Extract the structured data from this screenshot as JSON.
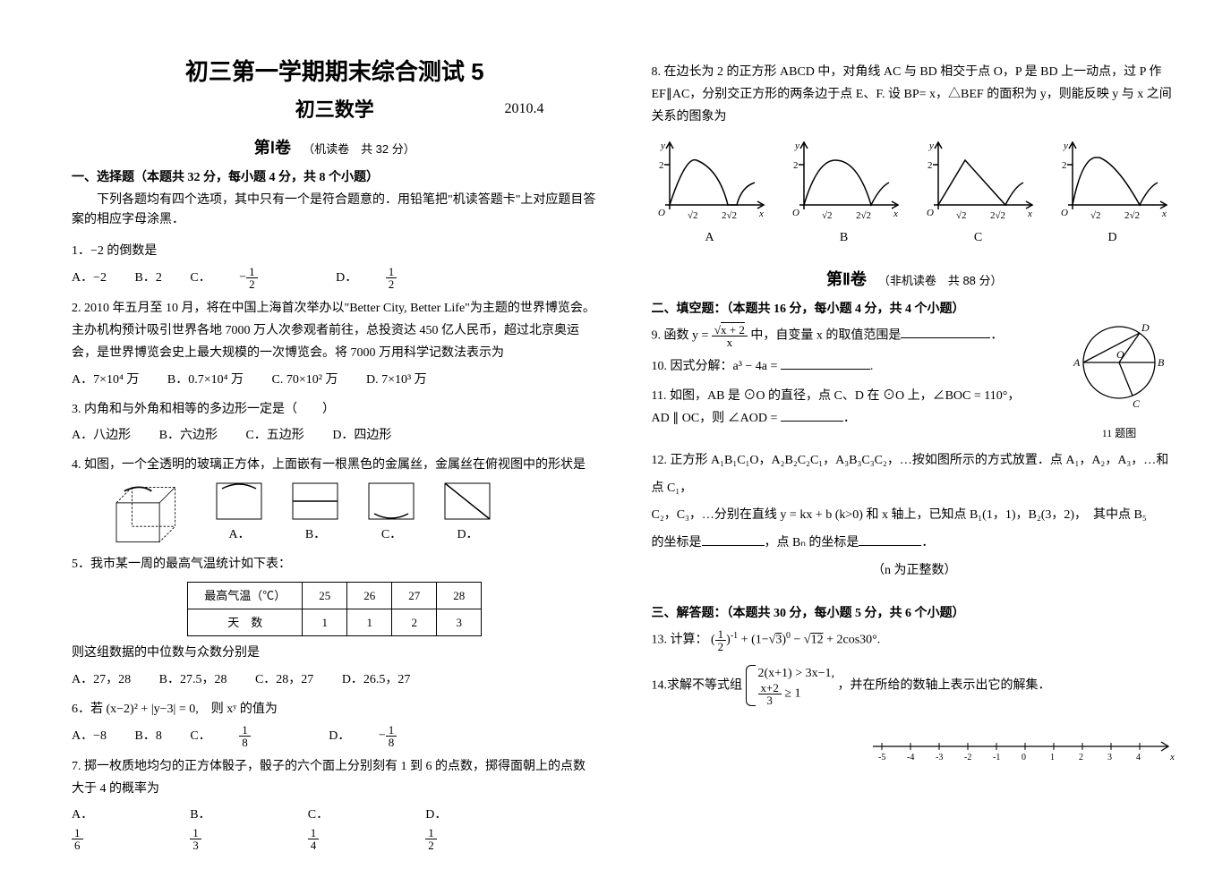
{
  "header": {
    "title_main": "初三第一学期期末综合测试 5",
    "title_sub": "初三数学",
    "date": "2010.4"
  },
  "part1": {
    "label": "第Ⅰ卷",
    "sub": "（机读卷　共 32 分）"
  },
  "section1": {
    "title": "一、选择题（本题共 32 分，每小题 4 分，共 8 个小题）",
    "instruction": "下列各题均有四个选项，其中只有一个是符合题意的．用铅笔把\"机读答题卡\"上对应题目答案的相应字母涂黑．"
  },
  "q1": {
    "text": "1．−2 的倒数是",
    "opts": {
      "A": "A．−2",
      "B": "B．2",
      "C": "C．",
      "D": "D．"
    }
  },
  "q2": {
    "text": "2. 2010 年五月至 10 月，将在中国上海首次举办以\"Better City, Better Life\"为主题的世界博览会。主办机构预计吸引世界各地 7000 万人次参观者前往，总投资达 450 亿人民币，超过北京奥运会，是世界博览会史上最大规模的一次博览会。将 7000 万用科学记数法表示为",
    "A": "A．7×10⁴ 万",
    "B": "B．0.7×10⁴ 万",
    "C": "C. 70×10² 万",
    "D": "D. 7×10³ 万"
  },
  "q3": {
    "text": "3. 内角和与外角和相等的多边形一定是（　　）",
    "A": "A．八边形",
    "B": "B．六边形",
    "C": "C．五边形",
    "D": "D．四边形"
  },
  "q4": {
    "text": "4. 如图，一个全透明的玻璃正方体，上面嵌有一根黑色的金属丝，金属丝在俯视图中的形状是",
    "opts": {
      "A": "A．",
      "B": "B．",
      "C": "C．",
      "D": "D．"
    }
  },
  "q5": {
    "text": "5．我市某一周的最高气温统计如下表：",
    "table": {
      "r1": [
        "最高气温（℃）",
        "25",
        "26",
        "27",
        "28"
      ],
      "r2": [
        "天　数",
        "1",
        "1",
        "2",
        "3"
      ]
    },
    "after": "则这组数据的中位数与众数分别是",
    "A": "A．27，28",
    "B": "B．27.5，28",
    "C": "C．28，27",
    "D": "D．26.5，27"
  },
  "q6": {
    "pre": "6．若 ",
    "post": "　则 xʸ 的值为",
    "A": "A．−8",
    "B": "B．8",
    "C": "C．",
    "D": "D．"
  },
  "q7": {
    "text": "7. 掷一枚质地均匀的正方体骰子，骰子的六个面上分别刻有 1 到 6 的点数，掷得面朝上的点数大于 4 的概率为",
    "opts": {
      "A": "A．",
      "B": "B．",
      "C": "C．",
      "D": "D．"
    }
  },
  "q8": {
    "text": "8. 在边长为 2 的正方形 ABCD 中，对角线 AC 与 BD 相交于点 O，P 是 BD 上一动点，过 P 作 EF∥AC，分别交正方形的两条边于点 E、F. 设 BP= x，△BEF 的面积为 y，则能反映 y 与 x 之间关系的图象为",
    "graph_labels": {
      "A": "A",
      "B": "B",
      "C": "C",
      "D": "D"
    },
    "axis_ticks": {
      "x1": "√2",
      "x2": "2√2",
      "y1": "2"
    }
  },
  "part2": {
    "label": "第Ⅱ卷",
    "sub": "（非机读卷　共 88 分）"
  },
  "section2": {
    "title": "二、填空题：（本题共 16 分，每小题 4 分，共 4 个小题）"
  },
  "q9": {
    "pre": "9. 函数 y = ",
    "mid": " 中，自变量 x 的取值范围是",
    "end": "．"
  },
  "q10": {
    "text": "10. 因式分解：a³ − 4a = ",
    "end": "."
  },
  "q11": {
    "text": "11. 如图，AB 是 ⊙O 的直径，点 C、D 在 ⊙O 上，∠BOC = 110°，",
    "line2_pre": "AD ∥ OC，则 ∠AOD = ",
    "line2_end": "．",
    "fig_label": "11 题图",
    "circ_labels": {
      "A": "A",
      "B": "B",
      "C": "C",
      "D": "D",
      "O": "O"
    }
  },
  "q12": {
    "l1": "12. 正方形 A₁B₁C₁O，A₂B₂C₂C₁，A₃B₃C₃C₂，…按如图所示的方式放置．点 A₁，A₂，A₃，…和点 C₁，",
    "l2": "C₂，C₃，…分别在直线 y = kx + b (k>0) 和 x 轴上，已知点 B₁(1，1)，B₂(3，2)，　其中点 B₅",
    "l3_pre": "的坐标是",
    "l3_mid": "，点 Bₙ 的坐标是",
    "l3_end": "．",
    "note": "（n 为正整数）"
  },
  "section3": {
    "title": "三、解答题：（本题共 30 分，每小题 5 分，共 6 个小题）"
  },
  "q13": {
    "pre": "13. 计算：",
    "end": "."
  },
  "q14": {
    "pre": "14.求解不等式组",
    "post": "，并在所给的数轴上表示出它的解集．",
    "sys_l1": "2(x+1) > 3x−1,",
    "sys_l2_pre": "",
    "sys_l2_post": " ≥ 1"
  },
  "numberline": {
    "ticks": [
      "-5",
      "-4",
      "-3",
      "-2",
      "-1",
      "0",
      "1",
      "2",
      "3",
      "4"
    ],
    "axis_label": "x"
  },
  "colors": {
    "stroke": "#000000",
    "bg": "#ffffff"
  }
}
